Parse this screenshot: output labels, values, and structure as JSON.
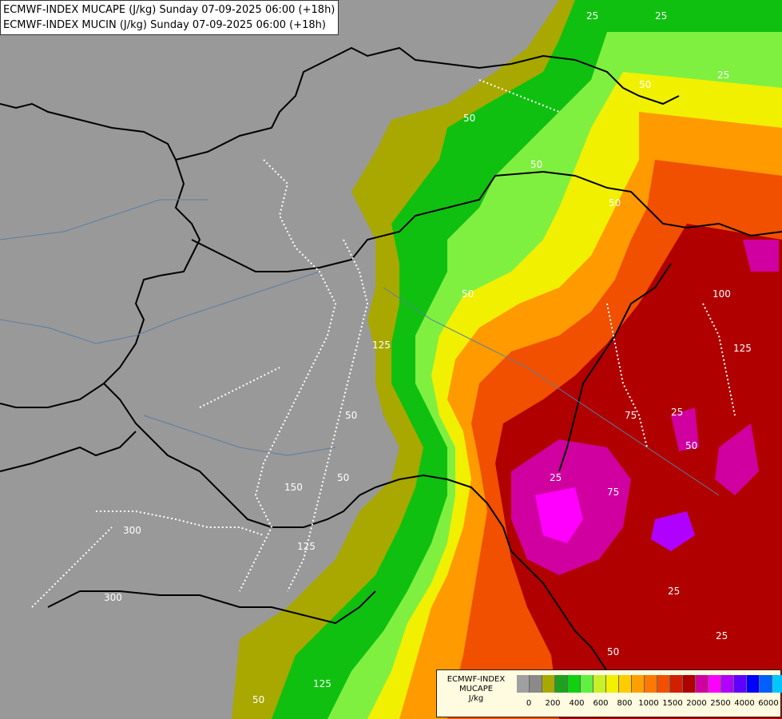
{
  "header": {
    "line1": "ECMWF-INDEX MUCAPE (J/kg) Sunday 07-09-2025 06:00 (+18h)",
    "line2": "ECMWF-INDEX MUCIN (J/kg) Sunday 07-09-2025 06:00 (+18h)"
  },
  "legend": {
    "line1": "ECMWF-INDEX",
    "line2": "MUCAPE",
    "line3": "J/kg",
    "colors": [
      "#a0a0a0",
      "#8a8a8a",
      "#a8a800",
      "#20a020",
      "#10d010",
      "#60f040",
      "#c8f028",
      "#f0f000",
      "#ffcc00",
      "#ffa000",
      "#ff7800",
      "#f05000",
      "#d02000",
      "#b00000",
      "#d000a0",
      "#ff00ff",
      "#b000ff",
      "#6000ff",
      "#0000ff",
      "#0060ff",
      "#00c8ff",
      "#80ffff",
      "#ffffff"
    ],
    "ticks": [
      "0",
      "200",
      "400",
      "600",
      "800",
      "1000",
      "1500",
      "2000",
      "2500",
      "4000",
      "6000"
    ]
  },
  "contour_labels": [
    "25",
    "25",
    "50",
    "25",
    "50",
    "50",
    "50",
    "100",
    "125",
    "125",
    "75",
    "25",
    "25",
    "150",
    "50",
    "125",
    "300",
    "300",
    "50",
    "25",
    "25",
    "125",
    "50",
    "50",
    "50",
    "50",
    "75"
  ]
}
